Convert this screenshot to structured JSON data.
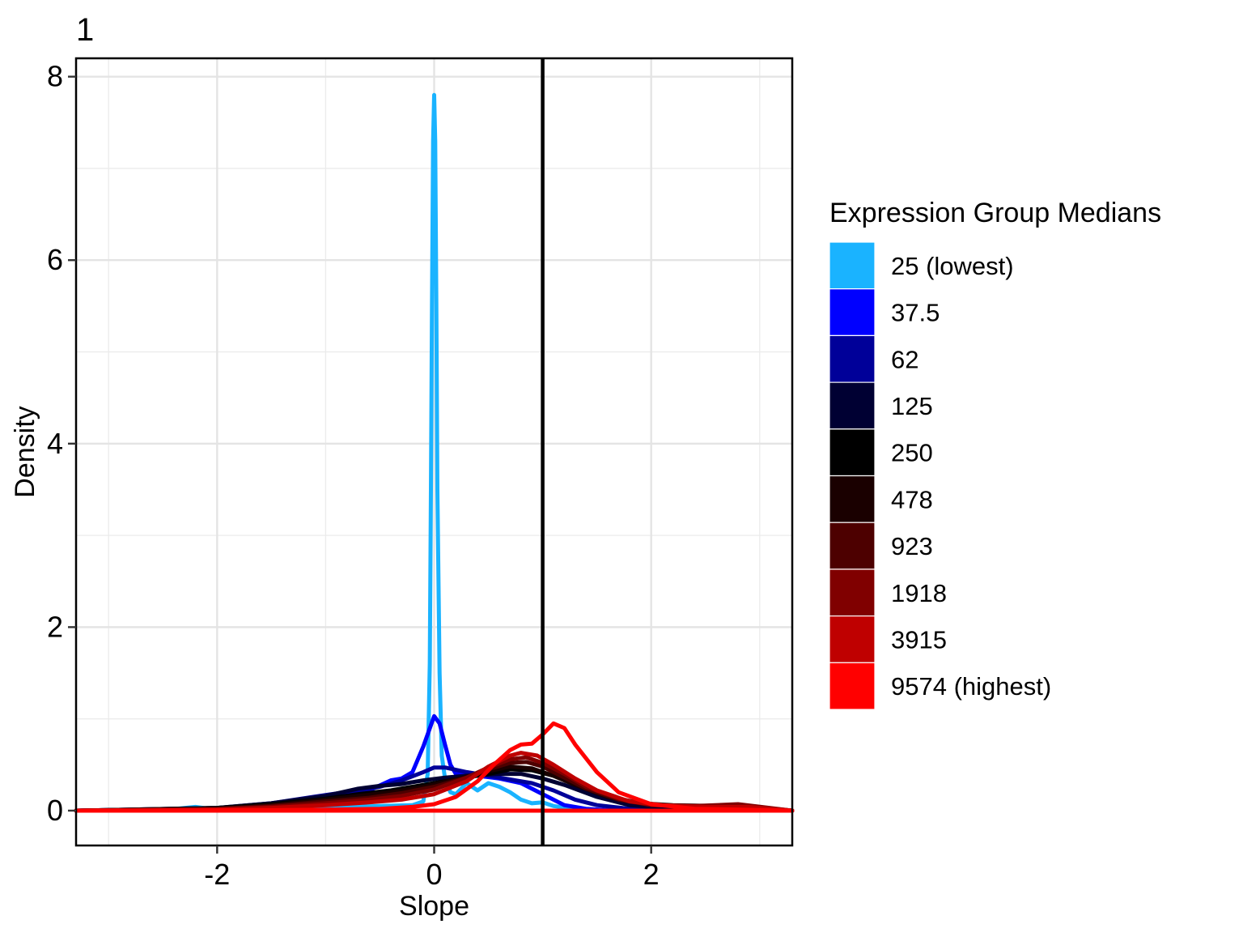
{
  "chart_data": {
    "type": "line",
    "tag": "1",
    "xlabel": "Slope",
    "ylabel": "Density",
    "xlim": [
      -3.3,
      3.3
    ],
    "ylim": [
      -0.38,
      8.2
    ],
    "x_ticks": [
      -2,
      0,
      2
    ],
    "y_ticks": [
      0,
      2,
      4,
      6,
      8
    ],
    "grid": true,
    "vline": 1,
    "legend": {
      "title": "Expression Group Medians",
      "placement": "right"
    },
    "series": [
      {
        "name": "25 (lowest)",
        "color": "#1AB3FF",
        "points": [
          [
            -3.3,
            0
          ],
          [
            -2.5,
            0.005
          ],
          [
            -2.2,
            0.04
          ],
          [
            -2.0,
            0.01
          ],
          [
            -1.0,
            0.03
          ],
          [
            -0.5,
            0.05
          ],
          [
            -0.2,
            0.06
          ],
          [
            -0.1,
            0.1
          ],
          [
            -0.06,
            0.4
          ],
          [
            -0.04,
            1.6
          ],
          [
            -0.03,
            3.5
          ],
          [
            -0.02,
            5.5
          ],
          [
            -0.01,
            7.3
          ],
          [
            0.0,
            7.8
          ],
          [
            0.01,
            7.3
          ],
          [
            0.02,
            5.5
          ],
          [
            0.03,
            3.5
          ],
          [
            0.05,
            1.5
          ],
          [
            0.07,
            0.6
          ],
          [
            0.1,
            0.35
          ],
          [
            0.15,
            0.2
          ],
          [
            0.2,
            0.18
          ],
          [
            0.3,
            0.3
          ],
          [
            0.4,
            0.22
          ],
          [
            0.5,
            0.3
          ],
          [
            0.6,
            0.26
          ],
          [
            0.7,
            0.2
          ],
          [
            0.8,
            0.12
          ],
          [
            0.9,
            0.08
          ],
          [
            1.0,
            0.09
          ],
          [
            1.1,
            0.05
          ],
          [
            1.3,
            0.02
          ],
          [
            1.6,
            0.005
          ],
          [
            3.3,
            0
          ]
        ]
      },
      {
        "name": "37.5",
        "color": "#0000FF",
        "points": [
          [
            -3.3,
            0
          ],
          [
            -2.0,
            0.02
          ],
          [
            -1.5,
            0.05
          ],
          [
            -1.0,
            0.1
          ],
          [
            -0.8,
            0.14
          ],
          [
            -0.6,
            0.22
          ],
          [
            -0.4,
            0.33
          ],
          [
            -0.3,
            0.35
          ],
          [
            -0.2,
            0.42
          ],
          [
            -0.1,
            0.7
          ],
          [
            0.0,
            1.03
          ],
          [
            0.05,
            0.95
          ],
          [
            0.1,
            0.72
          ],
          [
            0.15,
            0.5
          ],
          [
            0.2,
            0.4
          ],
          [
            0.4,
            0.38
          ],
          [
            0.6,
            0.35
          ],
          [
            0.8,
            0.3
          ],
          [
            1.0,
            0.18
          ],
          [
            1.2,
            0.06
          ],
          [
            1.4,
            0.02
          ],
          [
            1.6,
            0.005
          ],
          [
            3.3,
            0
          ]
        ]
      },
      {
        "name": "62",
        "color": "#000099",
        "points": [
          [
            -3.3,
            0
          ],
          [
            -2.0,
            0.03
          ],
          [
            -1.5,
            0.08
          ],
          [
            -1.0,
            0.17
          ],
          [
            -0.7,
            0.22
          ],
          [
            -0.5,
            0.26
          ],
          [
            -0.3,
            0.33
          ],
          [
            -0.1,
            0.42
          ],
          [
            0.0,
            0.47
          ],
          [
            0.1,
            0.47
          ],
          [
            0.3,
            0.42
          ],
          [
            0.6,
            0.36
          ],
          [
            0.9,
            0.3
          ],
          [
            1.1,
            0.22
          ],
          [
            1.3,
            0.12
          ],
          [
            1.5,
            0.06
          ],
          [
            1.8,
            0.02
          ],
          [
            2.2,
            0.005
          ],
          [
            3.3,
            0
          ]
        ]
      },
      {
        "name": "125",
        "color": "#000033",
        "points": [
          [
            -3.3,
            0
          ],
          [
            -2.0,
            0.03
          ],
          [
            -1.5,
            0.08
          ],
          [
            -1.0,
            0.16
          ],
          [
            -0.7,
            0.24
          ],
          [
            -0.5,
            0.27
          ],
          [
            -0.3,
            0.29
          ],
          [
            -0.1,
            0.33
          ],
          [
            0.1,
            0.36
          ],
          [
            0.3,
            0.38
          ],
          [
            0.6,
            0.4
          ],
          [
            0.8,
            0.4
          ],
          [
            1.0,
            0.35
          ],
          [
            1.2,
            0.28
          ],
          [
            1.5,
            0.15
          ],
          [
            1.8,
            0.06
          ],
          [
            2.2,
            0.02
          ],
          [
            2.6,
            0.01
          ],
          [
            3.3,
            0
          ]
        ]
      },
      {
        "name": "250",
        "color": "#000000",
        "points": [
          [
            -3.3,
            0
          ],
          [
            -2.0,
            0.03
          ],
          [
            -1.5,
            0.07
          ],
          [
            -1.0,
            0.13
          ],
          [
            -0.7,
            0.18
          ],
          [
            -0.4,
            0.22
          ],
          [
            -0.1,
            0.28
          ],
          [
            0.2,
            0.34
          ],
          [
            0.5,
            0.4
          ],
          [
            0.7,
            0.45
          ],
          [
            0.9,
            0.44
          ],
          [
            1.1,
            0.38
          ],
          [
            1.3,
            0.28
          ],
          [
            1.6,
            0.15
          ],
          [
            1.9,
            0.08
          ],
          [
            2.2,
            0.05
          ],
          [
            2.6,
            0.04
          ],
          [
            2.9,
            0.03
          ],
          [
            3.3,
            0
          ]
        ]
      },
      {
        "name": "478",
        "color": "#1A0000",
        "points": [
          [
            -3.3,
            0
          ],
          [
            -2.0,
            0.025
          ],
          [
            -1.5,
            0.06
          ],
          [
            -1.0,
            0.12
          ],
          [
            -0.7,
            0.16
          ],
          [
            -0.4,
            0.2
          ],
          [
            -0.1,
            0.26
          ],
          [
            0.2,
            0.34
          ],
          [
            0.5,
            0.43
          ],
          [
            0.7,
            0.48
          ],
          [
            0.9,
            0.46
          ],
          [
            1.1,
            0.38
          ],
          [
            1.3,
            0.28
          ],
          [
            1.6,
            0.15
          ],
          [
            1.9,
            0.08
          ],
          [
            2.2,
            0.06
          ],
          [
            2.6,
            0.05
          ],
          [
            2.9,
            0.04
          ],
          [
            3.3,
            0
          ]
        ]
      },
      {
        "name": "923",
        "color": "#4D0000",
        "points": [
          [
            -3.3,
            0
          ],
          [
            -2.0,
            0.02
          ],
          [
            -1.5,
            0.05
          ],
          [
            -1.0,
            0.1
          ],
          [
            -0.6,
            0.14
          ],
          [
            -0.3,
            0.19
          ],
          [
            0.0,
            0.26
          ],
          [
            0.3,
            0.36
          ],
          [
            0.5,
            0.45
          ],
          [
            0.7,
            0.52
          ],
          [
            0.85,
            0.53
          ],
          [
            1.0,
            0.48
          ],
          [
            1.2,
            0.36
          ],
          [
            1.4,
            0.24
          ],
          [
            1.7,
            0.12
          ],
          [
            2.0,
            0.06
          ],
          [
            2.4,
            0.05
          ],
          [
            2.8,
            0.06
          ],
          [
            3.3,
            0
          ]
        ]
      },
      {
        "name": "1918",
        "color": "#800000",
        "points": [
          [
            -3.3,
            0
          ],
          [
            -2.0,
            0.015
          ],
          [
            -1.5,
            0.04
          ],
          [
            -1.0,
            0.08
          ],
          [
            -0.6,
            0.12
          ],
          [
            -0.3,
            0.16
          ],
          [
            0.0,
            0.23
          ],
          [
            0.3,
            0.36
          ],
          [
            0.5,
            0.47
          ],
          [
            0.7,
            0.56
          ],
          [
            0.85,
            0.58
          ],
          [
            1.0,
            0.52
          ],
          [
            1.2,
            0.4
          ],
          [
            1.4,
            0.26
          ],
          [
            1.7,
            0.13
          ],
          [
            2.0,
            0.06
          ],
          [
            2.4,
            0.05
          ],
          [
            2.8,
            0.07
          ],
          [
            3.3,
            0
          ]
        ]
      },
      {
        "name": "3915",
        "color": "#BF0000",
        "points": [
          [
            -3.3,
            0
          ],
          [
            -2.0,
            0.01
          ],
          [
            -1.5,
            0.03
          ],
          [
            -1.0,
            0.06
          ],
          [
            -0.6,
            0.09
          ],
          [
            -0.3,
            0.12
          ],
          [
            0.0,
            0.18
          ],
          [
            0.3,
            0.32
          ],
          [
            0.5,
            0.48
          ],
          [
            0.7,
            0.6
          ],
          [
            0.8,
            0.63
          ],
          [
            0.95,
            0.6
          ],
          [
            1.1,
            0.5
          ],
          [
            1.3,
            0.35
          ],
          [
            1.5,
            0.22
          ],
          [
            1.8,
            0.1
          ],
          [
            2.1,
            0.06
          ],
          [
            2.5,
            0.04
          ],
          [
            2.9,
            0.04
          ],
          [
            3.3,
            0
          ]
        ]
      },
      {
        "name": "9574 (highest)",
        "color": "#FF0000",
        "points": [
          [
            -3.3,
            0
          ],
          [
            -1.5,
            0.005
          ],
          [
            -1.0,
            0.01
          ],
          [
            -0.5,
            0.02
          ],
          [
            -0.2,
            0.04
          ],
          [
            0.0,
            0.07
          ],
          [
            0.2,
            0.15
          ],
          [
            0.4,
            0.32
          ],
          [
            0.55,
            0.5
          ],
          [
            0.7,
            0.66
          ],
          [
            0.8,
            0.72
          ],
          [
            0.9,
            0.73
          ],
          [
            1.0,
            0.83
          ],
          [
            1.1,
            0.95
          ],
          [
            1.2,
            0.9
          ],
          [
            1.3,
            0.72
          ],
          [
            1.5,
            0.42
          ],
          [
            1.7,
            0.2
          ],
          [
            2.0,
            0.07
          ],
          [
            2.4,
            0.02
          ],
          [
            3.3,
            0
          ]
        ]
      }
    ]
  }
}
